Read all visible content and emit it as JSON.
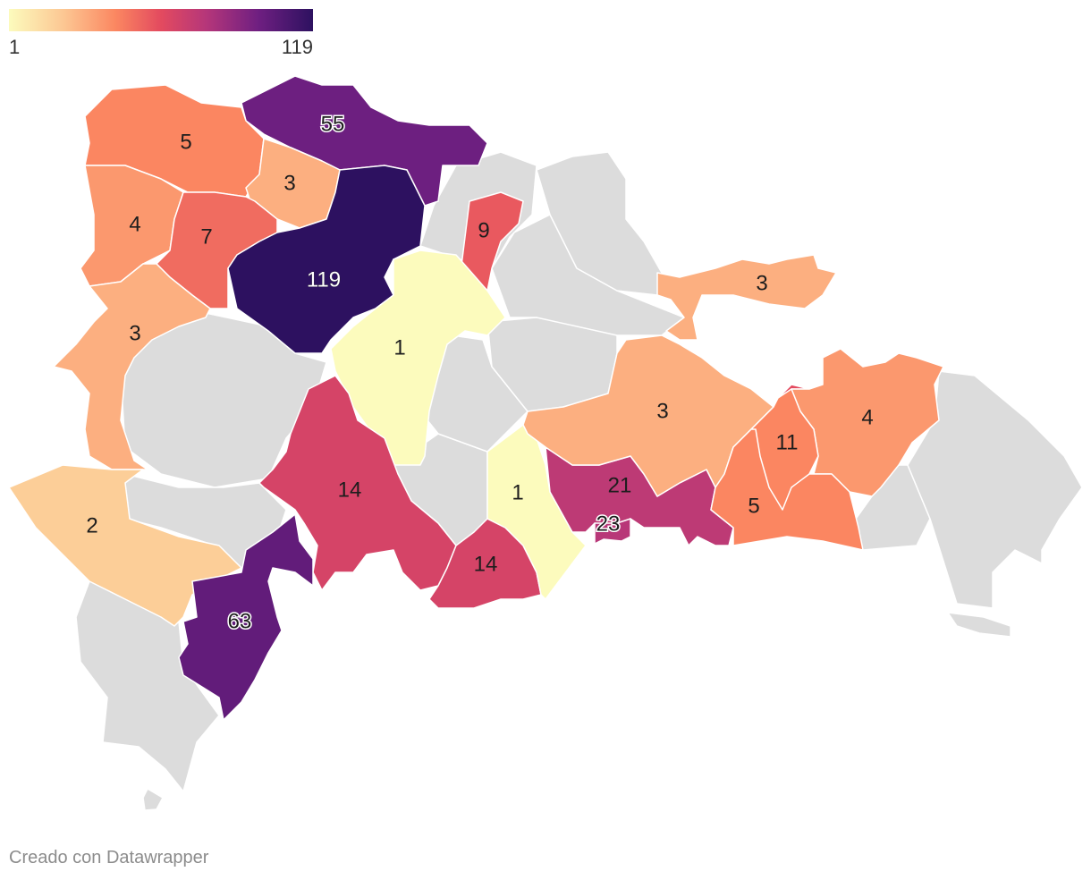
{
  "legend": {
    "min_label": "1",
    "max_label": "119"
  },
  "credit": "Creado con Datawrapper",
  "colors": {
    "no_data": "#dcdcdc",
    "scale": [
      "#fcfbbd",
      "#fcc793",
      "#fb8761",
      "#e34a5f",
      "#b5367a",
      "#6f1f81",
      "#2d1160"
    ]
  },
  "chart_data": {
    "type": "choropleth",
    "scale_min": 1,
    "scale_max": 119,
    "values": [
      {
        "id": "r-northcoast",
        "value": 55
      },
      {
        "id": "r-nw1",
        "value": 5
      },
      {
        "id": "r-nw2",
        "value": 3
      },
      {
        "id": "r-w1",
        "value": 4
      },
      {
        "id": "r-w2",
        "value": 7
      },
      {
        "id": "r-center",
        "value": 119
      },
      {
        "id": "r-ne1",
        "value": 9
      },
      {
        "id": "r-w3",
        "value": 3
      },
      {
        "id": "r-c2",
        "value": 1
      },
      {
        "id": "r-sw1",
        "value": 2
      },
      {
        "id": "r-s1",
        "value": 14
      },
      {
        "id": "r-s2",
        "value": 63
      },
      {
        "id": "r-s3",
        "value": 14
      },
      {
        "id": "r-s4",
        "value": 1
      },
      {
        "id": "r-s5",
        "value": 21
      },
      {
        "id": "r-s6",
        "value": 23
      },
      {
        "id": "r-e1",
        "value": 3
      },
      {
        "id": "r-e2",
        "value": 3
      },
      {
        "id": "r-e3",
        "value": 11
      },
      {
        "id": "r-e4",
        "value": 4
      },
      {
        "id": "r-e5",
        "value": 5
      }
    ]
  }
}
